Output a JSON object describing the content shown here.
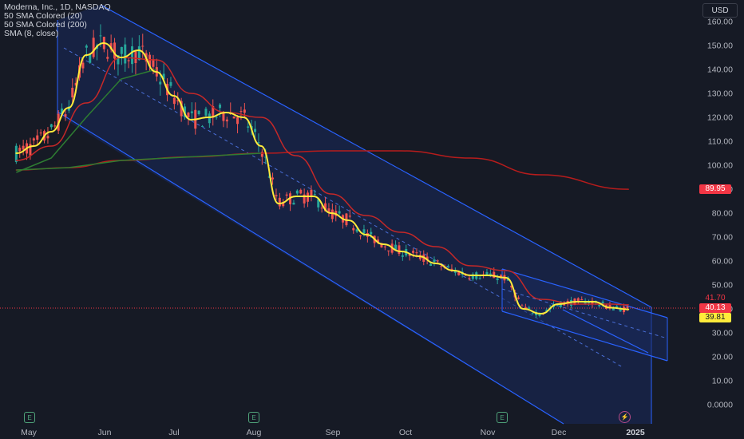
{
  "legend": {
    "symbol": "Moderna, Inc., 1D, NASDAQ",
    "study1": "50 SMA Colored (20)",
    "study2": "50 SMA Colored (200)",
    "study3": "SMA (8, close)"
  },
  "currency_button": "USD",
  "price_tags": {
    "sma200": "89.95",
    "high": "41.70",
    "last": "40.13",
    "sma8": "39.81"
  },
  "events": [
    "E",
    "E",
    "E"
  ],
  "colors": {
    "background": "#161a25",
    "up": "#26a69a",
    "down": "#ef5350",
    "sma8": "#ffeb3b",
    "sma20": "#c62828",
    "sma200": "#b71c1c",
    "sma_green": "#2e7d32",
    "channel": "#2962ff",
    "channel_fill": "#1a2a5c"
  },
  "chart_data": {
    "type": "line",
    "title": "Moderna, Inc., 1D, NASDAQ",
    "y_axis": {
      "ticks": [
        0,
        10,
        20,
        30,
        40,
        50,
        60,
        70,
        80,
        90,
        100,
        110,
        120,
        130,
        140,
        150,
        160
      ],
      "tick_labels": [
        "0.0000",
        "10.00",
        "20.00",
        "30.00",
        "40.00",
        "50.00",
        "60.00",
        "70.00",
        "80.00",
        "90.00",
        "100.00",
        "110.00",
        "120.00",
        "130.00",
        "140.00",
        "150.00",
        "160.00"
      ],
      "range": [
        -5,
        165
      ]
    },
    "x_axis": {
      "labels": [
        "May",
        "Jun",
        "Jul",
        "Aug",
        "Sep",
        "Oct",
        "Nov",
        "Dec",
        "2025"
      ]
    },
    "series": [
      {
        "name": "SMA (8, close)",
        "points": [
          [
            "Apr 26",
            105
          ],
          [
            "May 3",
            108
          ],
          [
            "May 10",
            114
          ],
          [
            "May 17",
            124
          ],
          [
            "May 24",
            146
          ],
          [
            "May 31",
            151
          ],
          [
            "Jun 7",
            145
          ],
          [
            "Jun 14",
            148
          ],
          [
            "Jun 21",
            139
          ],
          [
            "Jun 28",
            129
          ],
          [
            "Jul 5",
            119
          ],
          [
            "Jul 12",
            120
          ],
          [
            "Jul 19",
            122
          ],
          [
            "Jul 26",
            120
          ],
          [
            "Aug 2",
            108
          ],
          [
            "Aug 9",
            84
          ],
          [
            "Aug 16",
            87
          ],
          [
            "Aug 23",
            87
          ],
          [
            "Aug 30",
            80
          ],
          [
            "Sep 6",
            77
          ],
          [
            "Sep 13",
            71
          ],
          [
            "Sep 20",
            67
          ],
          [
            "Sep 27",
            64
          ],
          [
            "Oct 4",
            62
          ],
          [
            "Oct 11",
            59
          ],
          [
            "Oct 18",
            56
          ],
          [
            "Oct 25",
            54
          ],
          [
            "Nov 1",
            54
          ],
          [
            "Nov 8",
            53
          ],
          [
            "Nov 15",
            40
          ],
          [
            "Nov 22",
            38
          ],
          [
            "Nov 29",
            42
          ],
          [
            "Dec 6",
            43
          ],
          [
            "Dec 13",
            43
          ],
          [
            "Dec 20",
            40.5
          ],
          [
            "Dec 27",
            39.81
          ]
        ]
      },
      {
        "name": "50 SMA Colored (20)",
        "points": [
          [
            "Apr 26",
            102
          ],
          [
            "May 10",
            108
          ],
          [
            "May 24",
            126
          ],
          [
            "Jun 7",
            145
          ],
          [
            "Jun 21",
            144
          ],
          [
            "Jul 5",
            130
          ],
          [
            "Jul 19",
            122
          ],
          [
            "Aug 2",
            120
          ],
          [
            "Aug 16",
            104
          ],
          [
            "Aug 30",
            88
          ],
          [
            "Sep 13",
            79
          ],
          [
            "Sep 27",
            72
          ],
          [
            "Oct 11",
            66
          ],
          [
            "Oct 25",
            58
          ],
          [
            "Nov 8",
            56
          ],
          [
            "Nov 22",
            44
          ],
          [
            "Dec 6",
            42
          ],
          [
            "Dec 20",
            42
          ],
          [
            "Dec 27",
            41.7
          ]
        ]
      },
      {
        "name": "50 SMA Colored (200)",
        "points": [
          [
            "Apr 26",
            98
          ],
          [
            "May 17",
            99
          ],
          [
            "Jun 7",
            102
          ],
          [
            "Jul 5",
            103.5
          ],
          [
            "Aug 2",
            105
          ],
          [
            "Aug 30",
            106
          ],
          [
            "Sep 27",
            106
          ],
          [
            "Oct 25",
            103
          ],
          [
            "Nov 22",
            96
          ],
          [
            "Dec 27",
            89.95
          ]
        ]
      }
    ],
    "last_price": 40.13,
    "grid": false
  }
}
